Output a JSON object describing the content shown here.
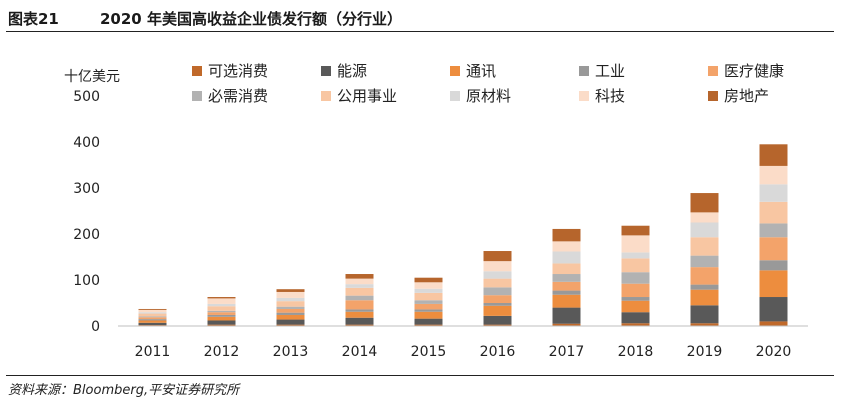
{
  "header": {
    "figure_number": "图表21",
    "title": "2020 年美国高收益企业债发行额（分行业）"
  },
  "source": "资料来源：Bloomberg,平安证券研究所",
  "chart_data": {
    "type": "bar",
    "stacked": true,
    "unit": "十亿美元",
    "categories": [
      "2011",
      "2012",
      "2013",
      "2014",
      "2015",
      "2016",
      "2017",
      "2018",
      "2019",
      "2020"
    ],
    "ylim": [
      0,
      500
    ],
    "yticks": [
      0,
      100,
      200,
      300,
      400,
      500
    ],
    "grid": false,
    "legend_position": "top",
    "series": [
      {
        "name": "可选消费",
        "color": "#c0692a",
        "values": [
          2,
          3,
          3,
          3,
          3,
          3,
          5,
          6,
          6,
          10
        ]
      },
      {
        "name": "能源",
        "color": "#595959",
        "values": [
          5,
          9,
          11,
          15,
          13,
          19,
          35,
          24,
          39,
          53
        ]
      },
      {
        "name": "通讯",
        "color": "#ed8d3e",
        "values": [
          5,
          8,
          10,
          13,
          15,
          22,
          28,
          25,
          34,
          58
        ]
      },
      {
        "name": "工业",
        "color": "#999999",
        "values": [
          3,
          4,
          5,
          5,
          5,
          6,
          9,
          8,
          11,
          22
        ]
      },
      {
        "name": "医疗健康",
        "color": "#f3a36a",
        "values": [
          4,
          6,
          8,
          20,
          12,
          17,
          19,
          29,
          38,
          50
        ]
      },
      {
        "name": "必需消费",
        "color": "#b2b2b2",
        "values": [
          2,
          3,
          5,
          10,
          8,
          17,
          17,
          25,
          25,
          30
        ]
      },
      {
        "name": "公用事业",
        "color": "#f8c6a2",
        "values": [
          6,
          10,
          12,
          17,
          16,
          19,
          23,
          30,
          40,
          47
        ]
      },
      {
        "name": "原材料",
        "color": "#d9d9d9",
        "values": [
          3,
          5,
          7,
          8,
          9,
          16,
          26,
          13,
          32,
          38
        ]
      },
      {
        "name": "科技",
        "color": "#fbdcc8",
        "values": [
          5,
          12,
          13,
          12,
          14,
          22,
          22,
          37,
          22,
          40
        ]
      },
      {
        "name": "房地产",
        "color": "#b6652c",
        "values": [
          2,
          3,
          6,
          10,
          10,
          22,
          27,
          21,
          42,
          47
        ]
      }
    ]
  }
}
